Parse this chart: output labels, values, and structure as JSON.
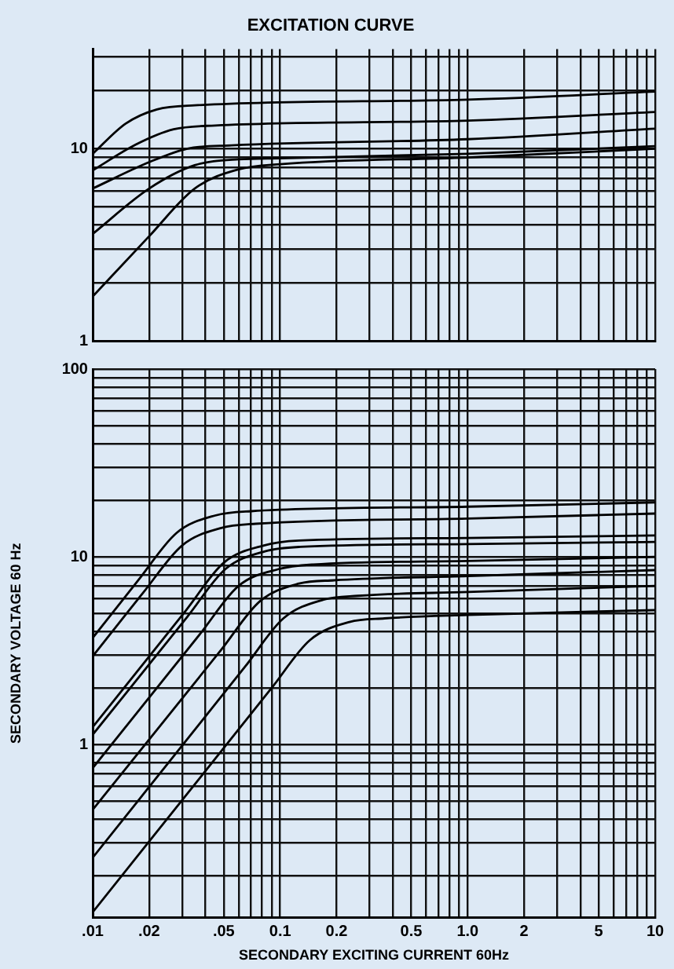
{
  "chart_data": [
    {
      "type": "line",
      "title": "EXCITATION CURVE",
      "log": "xy",
      "grid": true,
      "legend": false,
      "marker": "none",
      "line_style": "solid",
      "tick_labels": "y",
      "xlim": [
        0.01,
        10
      ],
      "xticks": [
        {
          "value": 0.01,
          "label": null
        },
        {
          "value": 0.02,
          "label": null
        },
        {
          "value": 0.03,
          "label": null
        },
        {
          "value": 0.04,
          "label": null
        },
        {
          "value": 0.05,
          "label": null
        },
        {
          "value": 0.06,
          "label": null
        },
        {
          "value": 0.07,
          "label": null
        },
        {
          "value": 0.08,
          "label": null
        },
        {
          "value": 0.09,
          "label": null
        },
        {
          "value": 0.1,
          "label": null
        },
        {
          "value": 0.2,
          "label": null
        },
        {
          "value": 0.3,
          "label": null
        },
        {
          "value": 0.4,
          "label": null
        },
        {
          "value": 0.5,
          "label": null
        },
        {
          "value": 0.6,
          "label": null
        },
        {
          "value": 0.7,
          "label": null
        },
        {
          "value": 0.8,
          "label": null
        },
        {
          "value": 0.9,
          "label": null
        },
        {
          "value": 1,
          "label": null
        },
        {
          "value": 2,
          "label": null
        },
        {
          "value": 3,
          "label": null
        },
        {
          "value": 4,
          "label": null
        },
        {
          "value": 5,
          "label": null
        },
        {
          "value": 6,
          "label": null
        },
        {
          "value": 7,
          "label": null
        },
        {
          "value": 8,
          "label": null
        },
        {
          "value": 9,
          "label": null
        },
        {
          "value": 10,
          "label": null
        }
      ],
      "ylim": [
        1,
        33
      ],
      "yticks": [
        1,
        {
          "value": 2,
          "label": null
        },
        {
          "value": 3,
          "label": null
        },
        {
          "value": 4,
          "label": null
        },
        {
          "value": 5,
          "label": null
        },
        {
          "value": 6,
          "label": null
        },
        {
          "value": 7,
          "label": null
        },
        {
          "value": 8,
          "label": null
        },
        {
          "value": 9,
          "label": null
        },
        10,
        {
          "value": 20,
          "label": null
        },
        {
          "value": 30,
          "label": null
        }
      ],
      "series": [
        {
          "color": "#000000",
          "x": [
            0.01,
            0.015,
            0.022,
            0.035,
            1,
            10
          ],
          "values": [
            9.4,
            13.5,
            16,
            16.8,
            18,
            19.8
          ]
        },
        {
          "color": "#000000",
          "x": [
            0.01,
            0.017,
            0.027,
            0.045,
            1,
            10
          ],
          "values": [
            7.7,
            10.5,
            12.6,
            13.2,
            14,
            15.5
          ]
        },
        {
          "color": "#000000",
          "x": [
            0.01,
            0.02,
            0.032,
            0.055,
            1,
            10
          ],
          "values": [
            6.2,
            8.5,
            10,
            10.4,
            11.2,
            12.7
          ]
        },
        {
          "color": "#000000",
          "x": [
            0.01,
            0.02,
            0.035,
            0.06,
            0.1,
            1,
            10
          ],
          "values": [
            3.6,
            6.2,
            8.2,
            8.8,
            8.9,
            9.4,
            10.3
          ]
        },
        {
          "color": "#000000",
          "x": [
            0.01,
            0.02,
            0.035,
            0.06,
            0.1,
            1,
            10
          ],
          "values": [
            1.7,
            3.5,
            6.2,
            7.8,
            8.3,
            9,
            10
          ]
        }
      ]
    },
    {
      "type": "line",
      "xlabel": "SECONDARY EXCITING CURRENT 60Hz",
      "ylabel": "SECONDARY VOLTAGE 60 Hz",
      "log": "xy",
      "grid": true,
      "legend": false,
      "marker": "none",
      "line_style": "solid",
      "xlim": [
        0.01,
        10
      ],
      "xticks": [
        {
          "value": 0.01,
          "label": ".01"
        },
        {
          "value": 0.02,
          "label": ".02"
        },
        {
          "value": 0.03,
          "label": null
        },
        {
          "value": 0.04,
          "label": null
        },
        {
          "value": 0.05,
          "label": ".05"
        },
        {
          "value": 0.06,
          "label": null
        },
        {
          "value": 0.07,
          "label": null
        },
        {
          "value": 0.08,
          "label": null
        },
        {
          "value": 0.09,
          "label": null
        },
        0.1,
        0.2,
        {
          "value": 0.3,
          "label": null
        },
        {
          "value": 0.4,
          "label": null
        },
        0.5,
        {
          "value": 0.6,
          "label": null
        },
        {
          "value": 0.7,
          "label": null
        },
        {
          "value": 0.8,
          "label": null
        },
        {
          "value": 0.9,
          "label": null
        },
        {
          "value": 1,
          "label": "1.0"
        },
        2,
        {
          "value": 3,
          "label": null
        },
        {
          "value": 4,
          "label": null
        },
        5,
        {
          "value": 6,
          "label": null
        },
        {
          "value": 7,
          "label": null
        },
        {
          "value": 8,
          "label": null
        },
        {
          "value": 9,
          "label": null
        },
        10
      ],
      "ylim": [
        0.12,
        100
      ],
      "yticks": [
        {
          "value": 0.2,
          "label": null
        },
        {
          "value": 0.3,
          "label": null
        },
        {
          "value": 0.4,
          "label": null
        },
        {
          "value": 0.5,
          "label": null
        },
        {
          "value": 0.6,
          "label": null
        },
        {
          "value": 0.7,
          "label": null
        },
        {
          "value": 0.8,
          "label": null
        },
        {
          "value": 0.9,
          "label": null
        },
        1,
        {
          "value": 2,
          "label": null
        },
        {
          "value": 3,
          "label": null
        },
        {
          "value": 4,
          "label": null
        },
        {
          "value": 5,
          "label": null
        },
        {
          "value": 6,
          "label": null
        },
        {
          "value": 7,
          "label": null
        },
        {
          "value": 8,
          "label": null
        },
        {
          "value": 9,
          "label": null
        },
        10,
        {
          "value": 20,
          "label": null
        },
        {
          "value": 30,
          "label": null
        },
        {
          "value": 40,
          "label": null
        },
        {
          "value": 50,
          "label": null
        },
        {
          "value": 60,
          "label": null
        },
        {
          "value": 70,
          "label": null
        },
        {
          "value": 80,
          "label": null
        },
        {
          "value": 90,
          "label": null
        },
        100
      ],
      "series": [
        {
          "color": "#000000",
          "x": [
            0.01,
            0.0175,
            0.028,
            0.045,
            0.07,
            1,
            10
          ],
          "values": [
            3.7,
            7.5,
            13.4,
            16.6,
            17.5,
            18.5,
            19.5
          ]
        },
        {
          "color": "#000000",
          "x": [
            0.01,
            0.0185,
            0.03,
            0.048,
            0.074,
            1,
            10
          ],
          "values": [
            2.95,
            6.4,
            11.5,
            14.2,
            15,
            16,
            17
          ]
        },
        {
          "color": "#000000",
          "x": [
            0.01,
            0.0315,
            0.05,
            0.082,
            0.126,
            1,
            10
          ],
          "values": [
            1.24,
            5.2,
            9.3,
            11.5,
            12.2,
            12.6,
            13
          ]
        },
        {
          "color": "#000000",
          "x": [
            0.01,
            0.032,
            0.051,
            0.083,
            0.128,
            1,
            10
          ],
          "values": [
            1.13,
            4.8,
            8.6,
            10.7,
            11.3,
            11.7,
            12
          ]
        },
        {
          "color": "#000000",
          "x": [
            0.01,
            0.0375,
            0.06,
            0.098,
            0.15,
            1,
            10
          ],
          "values": [
            0.75,
            3.9,
            7,
            8.6,
            9.1,
            9.5,
            10
          ]
        },
        {
          "color": "#000000",
          "x": [
            0.01,
            0.0485,
            0.078,
            0.126,
            0.194,
            1,
            10
          ],
          "values": [
            0.45,
            3.2,
            5.8,
            7.2,
            7.5,
            7.9,
            8.5
          ]
        },
        {
          "color": "#000000",
          "x": [
            0.01,
            0.065,
            0.104,
            0.169,
            0.26,
            1,
            10
          ],
          "values": [
            0.25,
            2.6,
            4.7,
            5.9,
            6.2,
            6.5,
            7
          ]
        },
        {
          "color": "#000000",
          "x": [
            0.01,
            0.09,
            0.144,
            0.234,
            0.36,
            1,
            10
          ],
          "values": [
            0.128,
            2,
            3.6,
            4.5,
            4.7,
            4.9,
            5.2
          ]
        }
      ]
    }
  ]
}
